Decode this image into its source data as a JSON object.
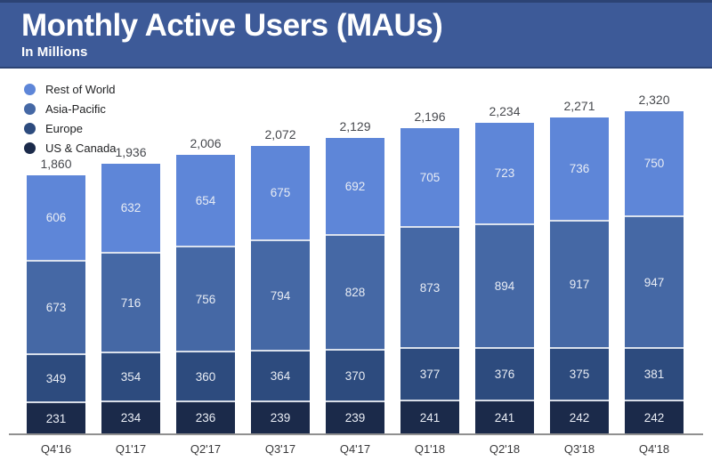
{
  "header": {
    "title": "Monthly Active Users (MAUs)",
    "subtitle": "In Millions"
  },
  "colors": {
    "header_bg": "#3d5a98",
    "header_edge": "#2c4374",
    "axis_line": "#909090",
    "total_label": "#47494e",
    "x_label": "#38383a",
    "segment_value_label": "#e8ecf4",
    "rest_of_world": "#5e86d8",
    "asia_pacific": "#4568a5",
    "europe": "#2d4b7e",
    "us_canada": "#1b2a4a"
  },
  "legend": {
    "items": [
      {
        "label": "Rest of World",
        "color": "#5e86d8"
      },
      {
        "label": "Asia-Pacific",
        "color": "#4568a5"
      },
      {
        "label": "Europe",
        "color": "#2d4b7e"
      },
      {
        "label": "US & Canada",
        "color": "#1b2a4a"
      }
    ]
  },
  "chart_data": {
    "type": "bar",
    "stacked": true,
    "title": "Monthly Active Users (MAUs)",
    "subtitle": "In Millions",
    "unit": "millions",
    "grid": false,
    "legend_position": "top-left",
    "xlabel": "",
    "ylabel": "",
    "categories": [
      "Q4'16",
      "Q1'17",
      "Q2'17",
      "Q3'17",
      "Q4'17",
      "Q1'18",
      "Q2'18",
      "Q3'18",
      "Q4'18"
    ],
    "stack_order": "bottom_to_top",
    "series": [
      {
        "name": "US & Canada",
        "color": "#1b2a4a",
        "values": [
          231,
          234,
          236,
          239,
          239,
          241,
          241,
          242,
          242
        ]
      },
      {
        "name": "Europe",
        "color": "#2d4b7e",
        "values": [
          349,
          354,
          360,
          364,
          370,
          377,
          376,
          375,
          381
        ]
      },
      {
        "name": "Asia-Pacific",
        "color": "#4568a5",
        "values": [
          673,
          716,
          756,
          794,
          828,
          873,
          894,
          917,
          947
        ]
      },
      {
        "name": "Rest of World",
        "color": "#5e86d8",
        "values": [
          606,
          632,
          654,
          675,
          692,
          705,
          723,
          736,
          750
        ]
      }
    ],
    "totals": [
      1860,
      1936,
      2006,
      2072,
      2129,
      2196,
      2234,
      2271,
      2320
    ],
    "totals_formatted": [
      "1,860",
      "1,936",
      "2,006",
      "2,072",
      "2,129",
      "2,196",
      "2,234",
      "2,271",
      "2,320"
    ]
  }
}
